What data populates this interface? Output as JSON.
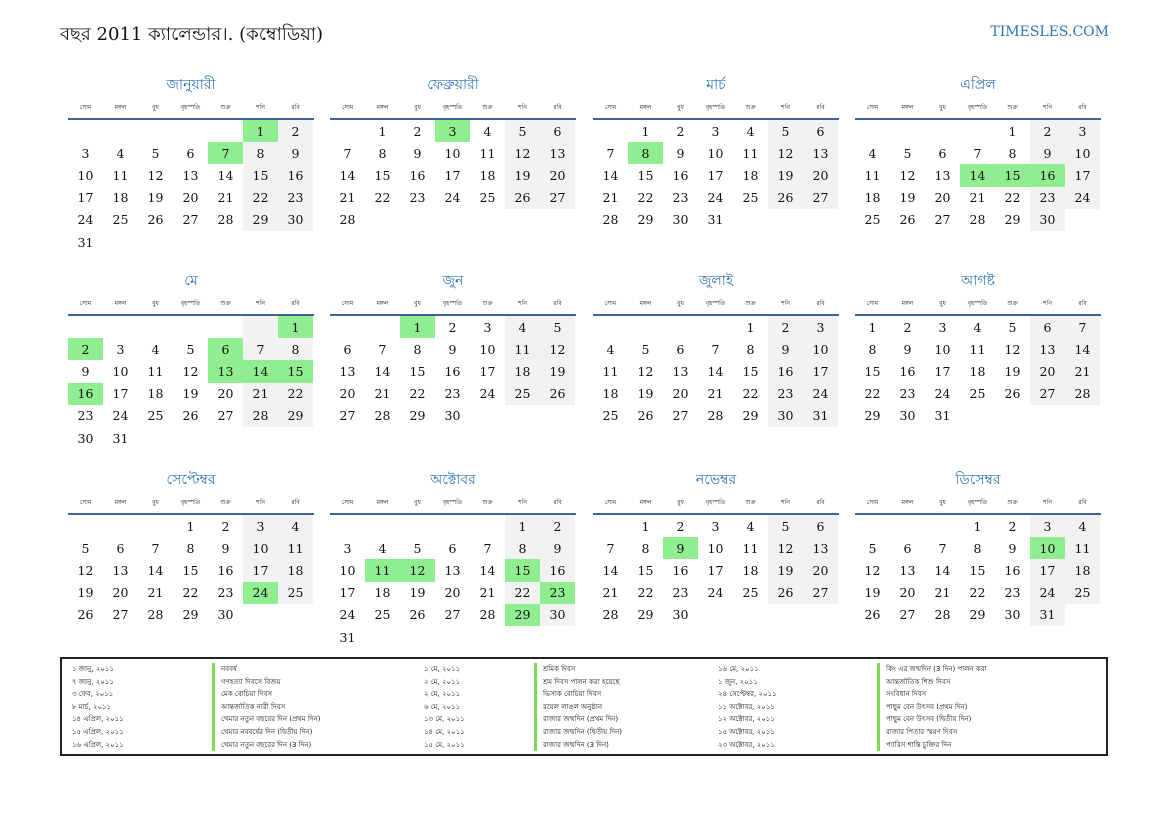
{
  "header": {
    "title": "বছর 2011 ক্যালেন্ডার।. (কম্বোডিয়া)",
    "site": "TIMESLES.COM"
  },
  "weekday_labels": [
    "সোম",
    "মঙ্গল",
    "বুধ",
    "বৃহস্পতি",
    "শুক্র",
    "শনি",
    "রবি"
  ],
  "months": [
    {
      "name": "জানুয়ারী",
      "start": 5,
      "days": 31,
      "holidays": [
        1,
        7
      ]
    },
    {
      "name": "ফেব্রুয়ারী",
      "start": 1,
      "days": 28,
      "holidays": [
        3
      ]
    },
    {
      "name": "মার্চ",
      "start": 1,
      "days": 31,
      "holidays": [
        8
      ]
    },
    {
      "name": "এপ্রিল",
      "start": 4,
      "days": 30,
      "holidays": [
        14,
        15,
        16
      ]
    },
    {
      "name": "মে",
      "start": 6,
      "days": 31,
      "holidays": [
        1,
        2,
        6,
        13,
        14,
        15,
        16
      ]
    },
    {
      "name": "জুন",
      "start": 2,
      "days": 30,
      "holidays": [
        1
      ]
    },
    {
      "name": "জুলাই",
      "start": 4,
      "days": 31,
      "holidays": []
    },
    {
      "name": "আগষ্ট",
      "start": 0,
      "days": 31,
      "holidays": []
    },
    {
      "name": "সেপ্টেম্বর",
      "start": 3,
      "days": 30,
      "holidays": [
        24
      ]
    },
    {
      "name": "অক্টোবর",
      "start": 5,
      "days": 31,
      "holidays": [
        11,
        12,
        15,
        23,
        29
      ]
    },
    {
      "name": "নভেম্বর",
      "start": 1,
      "days": 30,
      "holidays": [
        9
      ]
    },
    {
      "name": "ডিসেম্বর",
      "start": 3,
      "days": 31,
      "holidays": [
        10
      ]
    }
  ],
  "legend": [
    [
      {
        "date": "১ জানু, ২০১১",
        "desc": "নববর্ষ"
      },
      {
        "date": "৭ জানু, ২০১১",
        "desc": "গণহত্যা দিবসে বিজয়"
      },
      {
        "date": "৩ ফেব, ২০১১",
        "desc": "মেক বোচিয়া দিবস"
      },
      {
        "date": "৮ মার্চ, ২০১১",
        "desc": "আন্তর্জাতিক নারী দিবস"
      },
      {
        "date": "১৪ এপ্রিল, ২০১১",
        "desc": "খেমার নতুন বছরের দিন (প্রথম দিন)"
      },
      {
        "date": "১৫ এপ্রিল, ২০১১",
        "desc": "খেমার নববর্ষের দিন (দ্বিতীয় দিন)"
      },
      {
        "date": "১৬ এপ্রিল, ২০১১",
        "desc": "খেমার নতুন বছরের দিন (3 দিন)"
      }
    ],
    [
      {
        "date": "১ মে, ২০১১",
        "desc": "শ্রমিক দিবস"
      },
      {
        "date": "২ মে, ২০১১",
        "desc": "শ্রম দিবস পালন করা হয়েছে"
      },
      {
        "date": "২ মে, ২০১১",
        "desc": "ভিসাক বোচিয়া দিবস"
      },
      {
        "date": "৬ মে, ২০১১",
        "desc": "রয়েল লাঙল অনুষ্ঠান"
      },
      {
        "date": "১৩ মে, ২০১১",
        "desc": "রাজার জন্মদিন (প্রথম দিন)"
      },
      {
        "date": "১৪ মে, ২০১১",
        "desc": "রাজার জন্মদিন (দ্বিতীয় দিন)"
      },
      {
        "date": "১৫ মে, ২০১১",
        "desc": "রাজার জন্মদিন (3 দিন)"
      }
    ],
    [
      {
        "date": "১৬ মে, ২০১১",
        "desc": "কিং এর জন্মদিন (3 দিন) পালন করা"
      },
      {
        "date": "১ জুন, ২০১১",
        "desc": "আন্তর্জাতিক শিশু দিবস"
      },
      {
        "date": "২৪ সেপ্টেম্বর, ২০১১",
        "desc": "সংবিধান দিবস"
      },
      {
        "date": "১১ অক্টোবর, ২০১১",
        "desc": "পাছুম বেন উৎসব (প্রথম দিন)"
      },
      {
        "date": "১২ অক্টোবর, ২০১১",
        "desc": "পাছুম বেন উৎসব (দ্বিতীয় দিন)"
      },
      {
        "date": "১৫ অক্টোবর, ২০১১",
        "desc": "রাজার পিতার স্মরণ দিবস"
      },
      {
        "date": "২৩ অক্টোবর, ২০১১",
        "desc": "প্যারিস শান্তি চুক্তির দিন"
      }
    ]
  ]
}
